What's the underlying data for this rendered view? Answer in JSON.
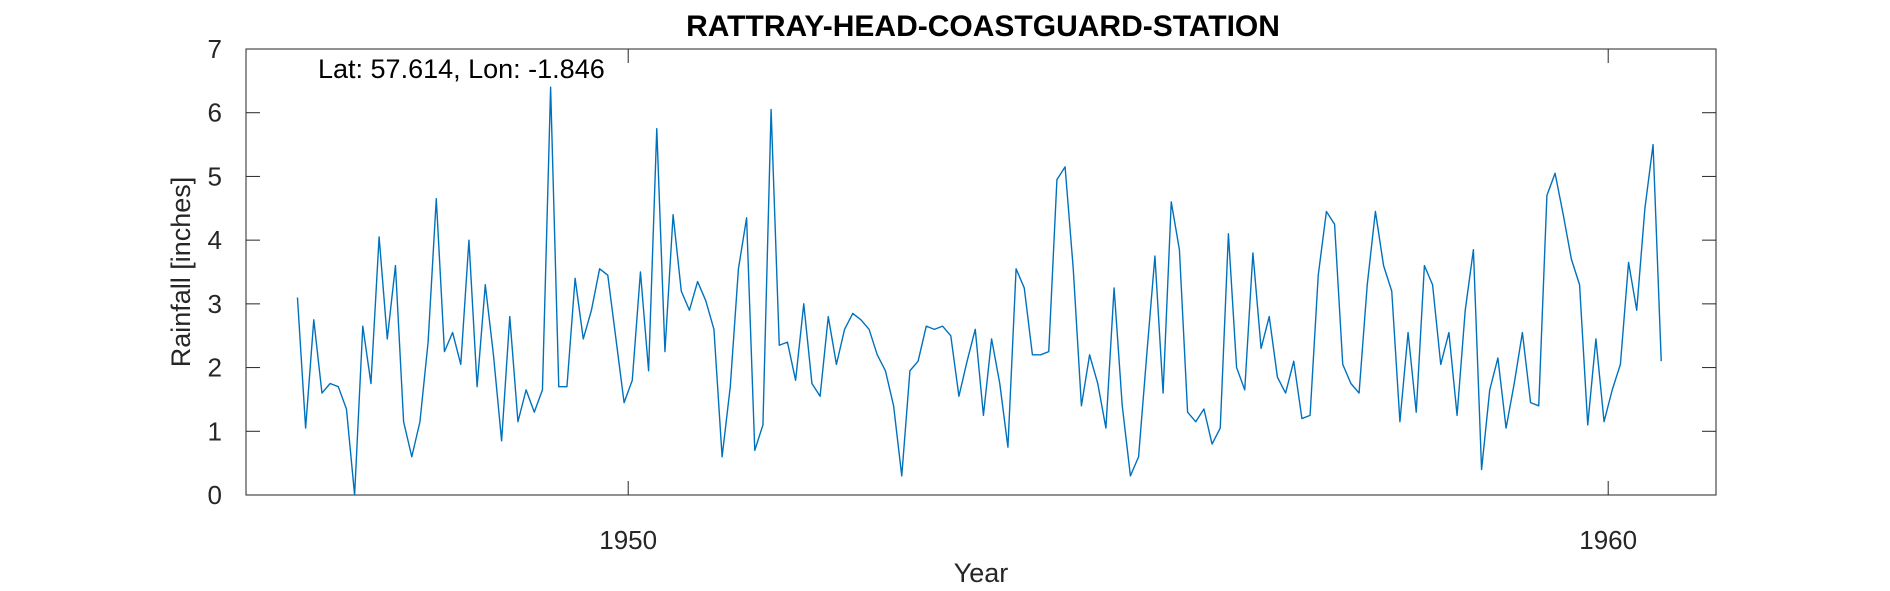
{
  "chart_data": {
    "type": "line",
    "title": "RATTRAY-HEAD-COASTGUARD-STATION",
    "xlabel": "Year",
    "ylabel": "Rainfall [inches]",
    "annotation": "Lat: 57.614, Lon: -1.846",
    "xlim": [
      1946.1,
      1961.1
    ],
    "ylim": [
      0,
      7
    ],
    "xticks": [
      1950,
      1960
    ],
    "xtick_labels": [
      "1950",
      "1960"
    ],
    "yticks": [
      0,
      1,
      2,
      3,
      4,
      5,
      6,
      7
    ],
    "ytick_labels": [
      "0",
      "1",
      "2",
      "3",
      "4",
      "5",
      "6",
      "7"
    ],
    "grid": false,
    "series": [
      {
        "color": "#0072BD",
        "x_start": 1946.625,
        "x_step": 0.08333,
        "values": [
          3.1,
          1.05,
          2.75,
          1.6,
          1.75,
          1.7,
          1.35,
          0.0,
          2.65,
          1.75,
          4.05,
          2.45,
          3.6,
          1.15,
          0.6,
          1.15,
          2.4,
          4.65,
          2.25,
          2.55,
          2.05,
          4.0,
          1.7,
          3.3,
          2.2,
          0.85,
          2.8,
          1.15,
          1.65,
          1.3,
          1.65,
          6.4,
          1.7,
          1.7,
          3.4,
          2.45,
          2.9,
          3.55,
          3.45,
          2.45,
          1.45,
          1.8,
          3.5,
          1.95,
          5.75,
          2.25,
          4.4,
          3.2,
          2.9,
          3.35,
          3.05,
          2.6,
          0.6,
          1.7,
          3.55,
          4.35,
          0.7,
          1.1,
          6.05,
          2.35,
          2.4,
          1.8,
          3.0,
          1.75,
          1.55,
          2.8,
          2.05,
          2.6,
          2.85,
          2.75,
          2.6,
          2.2,
          1.95,
          1.4,
          0.3,
          1.95,
          2.1,
          2.65,
          2.6,
          2.65,
          2.5,
          1.55,
          2.1,
          2.6,
          1.25,
          2.45,
          1.75,
          0.75,
          3.55,
          3.25,
          2.2,
          2.2,
          2.25,
          4.95,
          5.15,
          3.55,
          1.4,
          2.2,
          1.75,
          1.05,
          3.25,
          1.4,
          0.3,
          0.6,
          2.2,
          3.75,
          1.6,
          4.6,
          3.85,
          1.3,
          1.15,
          1.35,
          0.8,
          1.05,
          4.1,
          2.0,
          1.65,
          3.8,
          2.3,
          2.8,
          1.85,
          1.6,
          2.1,
          1.2,
          1.25,
          3.45,
          4.45,
          4.25,
          2.05,
          1.75,
          1.6,
          3.3,
          4.45,
          3.6,
          3.2,
          1.15,
          2.55,
          1.3,
          3.6,
          3.3,
          2.05,
          2.55,
          1.25,
          2.9,
          3.85,
          0.4,
          1.65,
          2.15,
          1.05,
          1.75,
          2.55,
          1.45,
          1.4,
          4.7,
          5.05,
          4.4,
          3.7,
          3.3,
          1.1,
          2.45,
          1.15,
          1.65,
          2.05,
          3.65,
          2.9,
          4.5,
          5.5,
          2.1
        ]
      }
    ]
  }
}
